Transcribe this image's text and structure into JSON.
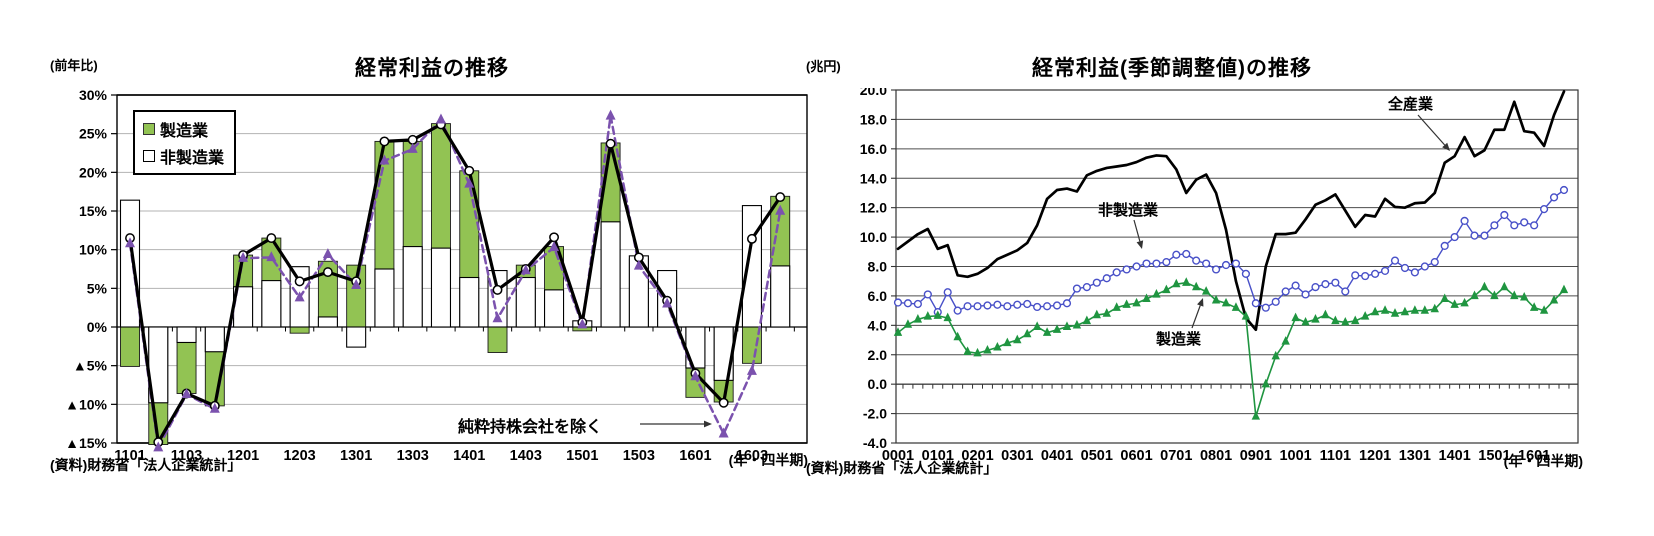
{
  "page": {
    "background": "#ffffff"
  },
  "left_chart": {
    "title": "経常利益の推移",
    "unit_label": "(前年比)",
    "source": "(資料)財務省「法人企業統計」",
    "xaxis_note": "(年・四半期)",
    "annotation": "純粋持株会社を除く"
  },
  "right_chart": {
    "title": "経常利益(季節調整値)の推移",
    "unit_label": "(兆円)",
    "source": "(資料)財務省「法人企業統計」",
    "xaxis_note": "(年・四半期)"
  },
  "chart_data": [
    {
      "id": "ordinary-profit-yoy",
      "type": "bar",
      "title": "経常利益の推移",
      "ylabel": "(前年比)",
      "xlabel": "(年・四半期)",
      "ylim": [
        -15,
        30
      ],
      "ytick_step": 5,
      "ytick_labels": [
        "30%",
        "25%",
        "20%",
        "15%",
        "10%",
        "5%",
        "0%",
        "▲5%",
        "▲10%",
        "▲15%"
      ],
      "x_tick_labels": [
        "1101",
        "1103",
        "1201",
        "1203",
        "1301",
        "1303",
        "1401",
        "1403",
        "1501",
        "1503",
        "1601",
        "1603"
      ],
      "x_labels_every": 2,
      "grid": true,
      "legend_position": "top-left-inside",
      "annotation": "純粋持株会社を除く",
      "series": [
        {
          "name": "製造業",
          "kind": "bar",
          "color": "#92c353",
          "values": [
            -5.1,
            -15.2,
            -8.6,
            -10.2,
            9.3,
            11.5,
            -0.8,
            8.5,
            8.0,
            24.0,
            24.0,
            26.3,
            20.2,
            -3.3,
            8.0,
            10.4,
            -0.5,
            23.8,
            8.8,
            6.5,
            -9.1,
            -9.7,
            -4.7,
            16.9
          ]
        },
        {
          "name": "非製造業",
          "kind": "bar",
          "color": "#ffffff",
          "values": [
            16.4,
            -9.8,
            -2.0,
            -3.2,
            5.2,
            6.0,
            7.8,
            1.3,
            -2.6,
            7.5,
            10.4,
            10.2,
            6.4,
            7.3,
            6.4,
            4.8,
            0.8,
            13.6,
            9.2,
            7.3,
            -5.3,
            -6.9,
            15.7,
            7.9
          ]
        },
        {
          "name": "",
          "kind": "line",
          "marker": "circle",
          "dash": false,
          "color": "#000000",
          "values": [
            11.5,
            -14.9,
            -8.6,
            -10.2,
            9.3,
            11.5,
            5.9,
            7.1,
            5.9,
            24.0,
            24.2,
            26.2,
            20.2,
            4.8,
            7.5,
            11.6,
            0.6,
            23.7,
            9.0,
            3.4,
            -6.0,
            -9.8,
            11.4,
            16.8
          ]
        },
        {
          "name": "純粋持株会社を除く",
          "kind": "line",
          "marker": "triangle",
          "dash": true,
          "color": "#7b52ae",
          "values": [
            10.8,
            -15.6,
            -8.7,
            -10.6,
            8.9,
            9.0,
            3.8,
            9.4,
            5.4,
            21.5,
            23.0,
            26.8,
            18.5,
            1.1,
            7.3,
            10.3,
            0.3,
            27.3,
            7.9,
            3.0,
            -6.4,
            -13.8,
            -5.7,
            15.0
          ]
        }
      ]
    },
    {
      "id": "ordinary-profit-seasonally-adjusted",
      "type": "line",
      "title": "経常利益(季節調整値)の推移",
      "ylabel": "(兆円)",
      "xlabel": "(年・四半期)",
      "ylim": [
        -4,
        20
      ],
      "ytick_step": 2,
      "ytick_labels": [
        "20.0",
        "18.0",
        "16.0",
        "14.0",
        "12.0",
        "10.0",
        "8.0",
        "6.0",
        "4.0",
        "2.0",
        "0.0",
        "-2.0",
        "-4.0"
      ],
      "x_tick_labels": [
        "0001",
        "0101",
        "0201",
        "0301",
        "0401",
        "0501",
        "0601",
        "0701",
        "0801",
        "0901",
        "1001",
        "1101",
        "1201",
        "1301",
        "1401",
        "1501",
        "1601"
      ],
      "x_labels_every": 4,
      "grid": true,
      "legend_position": "inline-annotations",
      "series": [
        {
          "name": "全産業",
          "kind": "line",
          "marker": "none",
          "dash": false,
          "color": "#000000",
          "values": [
            9.2,
            9.7,
            10.2,
            10.55,
            9.2,
            9.45,
            7.4,
            7.3,
            7.5,
            7.9,
            8.5,
            8.8,
            9.1,
            9.6,
            10.8,
            12.6,
            13.2,
            13.3,
            13.1,
            14.2,
            14.5,
            14.7,
            14.8,
            14.9,
            15.1,
            15.4,
            15.55,
            15.5,
            14.6,
            13.0,
            13.9,
            14.25,
            13.0,
            10.5,
            7.0,
            4.5,
            3.7,
            8.0,
            10.2,
            10.2,
            10.3,
            11.2,
            12.2,
            12.5,
            12.9,
            11.8,
            10.7,
            11.5,
            11.4,
            12.6,
            12.05,
            12.0,
            12.3,
            12.35,
            13.0,
            15.05,
            15.5,
            16.8,
            15.5,
            15.9,
            17.3,
            17.3,
            19.2,
            17.2,
            17.1,
            16.2,
            18.3,
            19.9
          ]
        },
        {
          "name": "非製造業",
          "kind": "line",
          "marker": "circle",
          "dash": false,
          "color": "#4850c8",
          "values": [
            5.55,
            5.5,
            5.45,
            6.1,
            4.9,
            6.25,
            5.0,
            5.3,
            5.3,
            5.35,
            5.4,
            5.3,
            5.4,
            5.45,
            5.25,
            5.3,
            5.35,
            5.5,
            6.5,
            6.6,
            6.9,
            7.2,
            7.6,
            7.8,
            8.0,
            8.2,
            8.2,
            8.3,
            8.8,
            8.85,
            8.4,
            8.2,
            7.8,
            8.1,
            8.2,
            7.5,
            5.5,
            5.2,
            5.6,
            6.3,
            6.7,
            6.1,
            6.6,
            6.8,
            6.9,
            6.3,
            7.4,
            7.35,
            7.5,
            7.7,
            8.4,
            7.9,
            7.6,
            8.0,
            8.3,
            9.4,
            10.0,
            11.1,
            10.1,
            10.1,
            10.8,
            11.5,
            10.8,
            11.0,
            10.8,
            11.9,
            12.7,
            13.2
          ]
        },
        {
          "name": "製造業",
          "kind": "line",
          "marker": "triangle-filled",
          "dash": false,
          "color": "#1f9540",
          "values": [
            3.5,
            4.05,
            4.4,
            4.6,
            4.65,
            4.5,
            3.2,
            2.2,
            2.1,
            2.3,
            2.5,
            2.8,
            3.0,
            3.4,
            3.9,
            3.5,
            3.7,
            3.9,
            4.0,
            4.3,
            4.7,
            4.8,
            5.2,
            5.4,
            5.5,
            5.8,
            6.1,
            6.4,
            6.8,
            6.9,
            6.6,
            6.3,
            5.7,
            5.5,
            5.2,
            4.6,
            -2.2,
            0.0,
            1.9,
            2.9,
            4.5,
            4.2,
            4.4,
            4.7,
            4.3,
            4.2,
            4.3,
            4.6,
            4.9,
            5.0,
            4.8,
            4.9,
            5.0,
            5.0,
            5.1,
            5.8,
            5.4,
            5.5,
            6.0,
            6.6,
            6.0,
            6.6,
            6.0,
            5.9,
            5.2,
            5.0,
            5.7,
            6.4
          ]
        }
      ]
    }
  ]
}
